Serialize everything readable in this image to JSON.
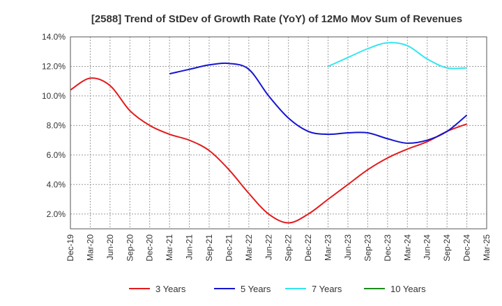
{
  "chart_data": {
    "type": "line",
    "title": "[2588]  Trend of StDev of Growth Rate (YoY) of 12Mo Mov Sum of Revenues",
    "xlabel": "",
    "ylabel": "",
    "ylim": [
      1.0,
      14.0
    ],
    "yticks": [
      "2.0%",
      "4.0%",
      "6.0%",
      "8.0%",
      "10.0%",
      "12.0%",
      "14.0%"
    ],
    "ytick_values": [
      2,
      4,
      6,
      8,
      10,
      12,
      14
    ],
    "categories": [
      "Dec-19",
      "Mar-20",
      "Jun-20",
      "Sep-20",
      "Dec-20",
      "Mar-21",
      "Jun-21",
      "Sep-21",
      "Dec-21",
      "Mar-22",
      "Jun-22",
      "Sep-22",
      "Dec-22",
      "Mar-23",
      "Jun-23",
      "Sep-23",
      "Dec-23",
      "Mar-24",
      "Jun-24",
      "Sep-24",
      "Dec-24",
      "Mar-25"
    ],
    "grid": true,
    "legend_position": "bottom",
    "series": [
      {
        "name": "3 Years",
        "color": "#e31a1c",
        "values": [
          10.4,
          11.2,
          10.7,
          9.0,
          8.0,
          7.4,
          7.0,
          6.3,
          5.0,
          3.4,
          2.0,
          1.4,
          2.0,
          3.0,
          4.0,
          5.0,
          5.8,
          6.4,
          6.9,
          7.6,
          8.1,
          null
        ]
      },
      {
        "name": "5 Years",
        "color": "#1414d2",
        "values": [
          null,
          null,
          null,
          null,
          null,
          11.5,
          11.8,
          12.1,
          12.2,
          11.8,
          10.0,
          8.5,
          7.6,
          7.4,
          7.5,
          7.5,
          7.1,
          6.8,
          7.0,
          7.6,
          8.7,
          null
        ]
      },
      {
        "name": "7 Years",
        "color": "#33e6f0",
        "values": [
          null,
          null,
          null,
          null,
          null,
          null,
          null,
          null,
          null,
          null,
          null,
          null,
          null,
          12.0,
          12.6,
          13.2,
          13.6,
          13.4,
          12.5,
          11.9,
          11.9,
          null
        ]
      },
      {
        "name": "10 Years",
        "color": "#1a8a1a",
        "values": [
          null,
          null,
          null,
          null,
          null,
          null,
          null,
          null,
          null,
          null,
          null,
          null,
          null,
          null,
          null,
          null,
          null,
          null,
          null,
          null,
          null,
          null
        ]
      }
    ]
  }
}
